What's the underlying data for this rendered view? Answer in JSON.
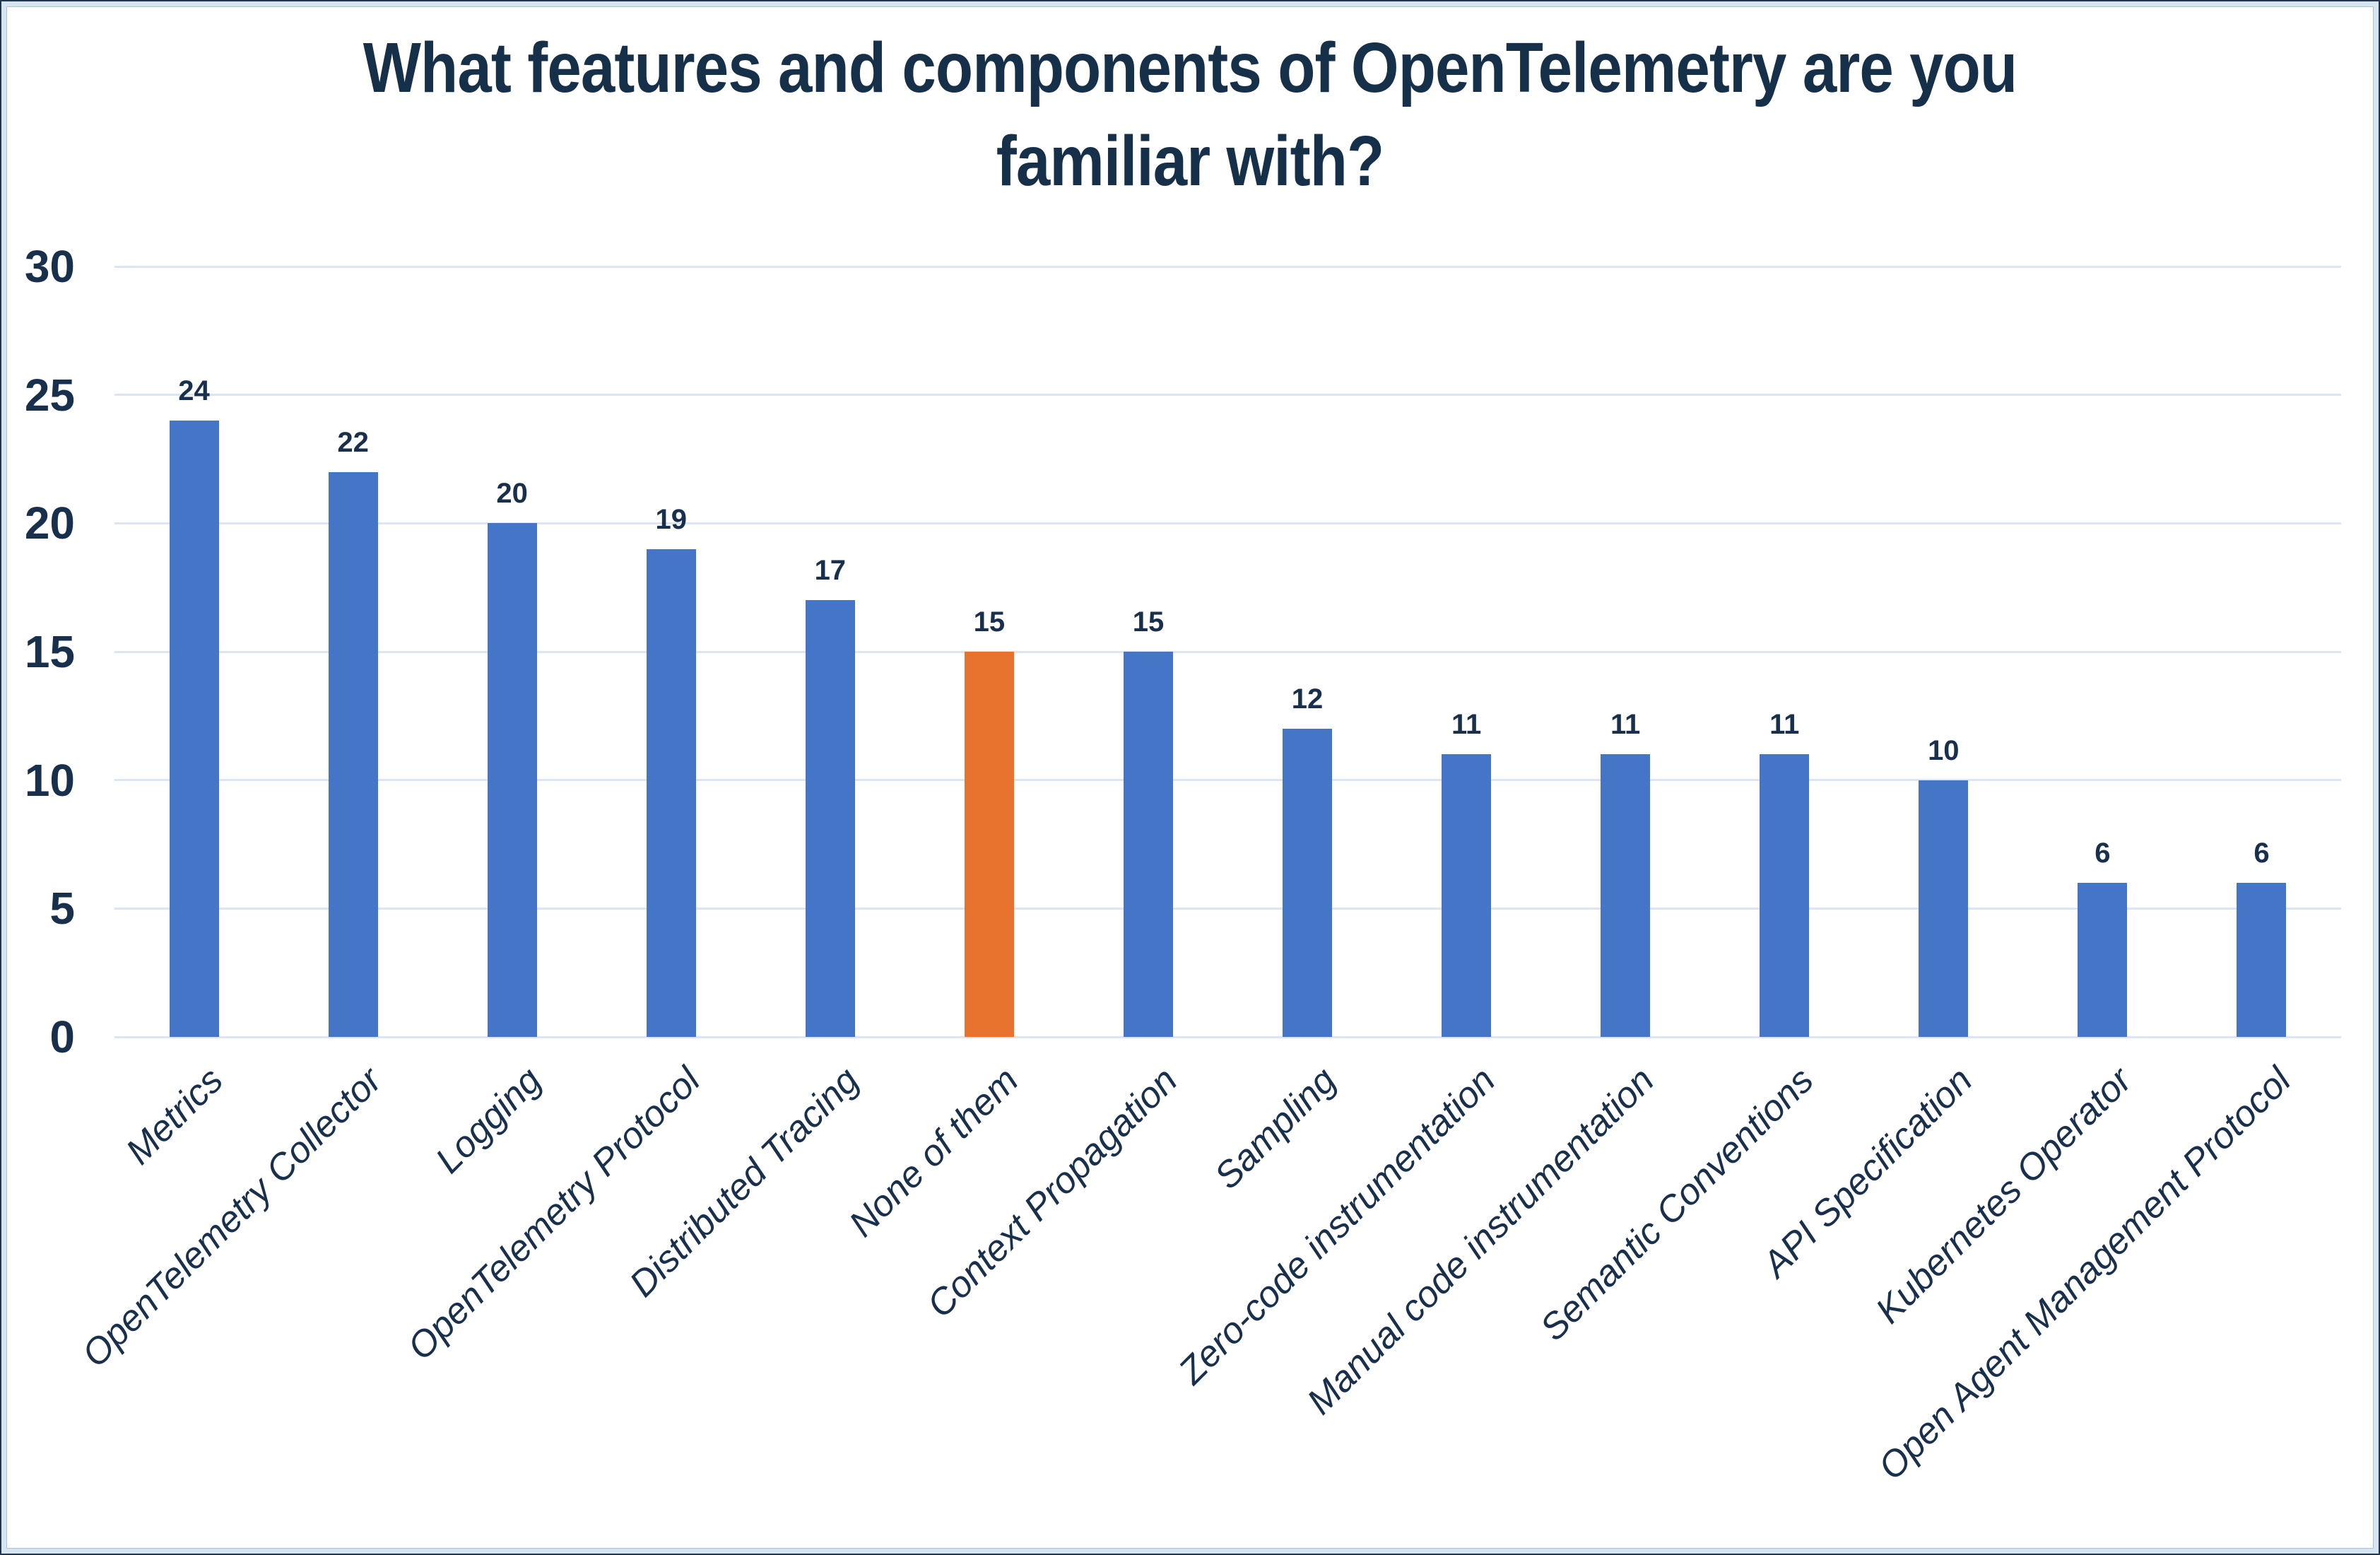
{
  "chart_data": {
    "type": "bar",
    "title": "What features and components of OpenTelemetry are you familiar with?",
    "title_lines": [
      "What features and components of OpenTelemetry are you",
      "familiar with?"
    ],
    "categories": [
      "Metrics",
      "OpenTelemetry Collector",
      "Logging",
      "OpenTelemetry Protocol",
      "Distributed Tracing",
      "None of them",
      "Context Propagation",
      "Sampling",
      "Zero-code instrumentation",
      "Manual code instrumentation",
      "Semantic Conventions",
      "API Specification",
      "Kubernetes Operator",
      "Open Agent Management Protocol"
    ],
    "values": [
      24,
      22,
      20,
      19,
      17,
      15,
      15,
      12,
      11,
      11,
      11,
      10,
      6,
      6
    ],
    "bar_colors": [
      "#4575C7",
      "#4575C7",
      "#4575C7",
      "#4575C7",
      "#4575C7",
      "#E8732E",
      "#4575C7",
      "#4575C7",
      "#4575C7",
      "#4575C7",
      "#4575C7",
      "#4575C7",
      "#4575C7",
      "#4575C7"
    ],
    "highlighted_category": "None of them",
    "y_ticks": [
      0,
      5,
      10,
      15,
      20,
      25,
      30
    ],
    "ylim": [
      0,
      30
    ],
    "xlabel": "",
    "ylabel": "",
    "grid": true,
    "legend": "none",
    "colors": {
      "series": "#4575C7",
      "highlight": "#E8732E",
      "text": "#18304C",
      "title_text": "#17304A",
      "gridline": "#DCE6F2",
      "frame_outer": "#22364F",
      "frame_inner": "#D7E4F2",
      "background": "#FFFFFF"
    }
  }
}
